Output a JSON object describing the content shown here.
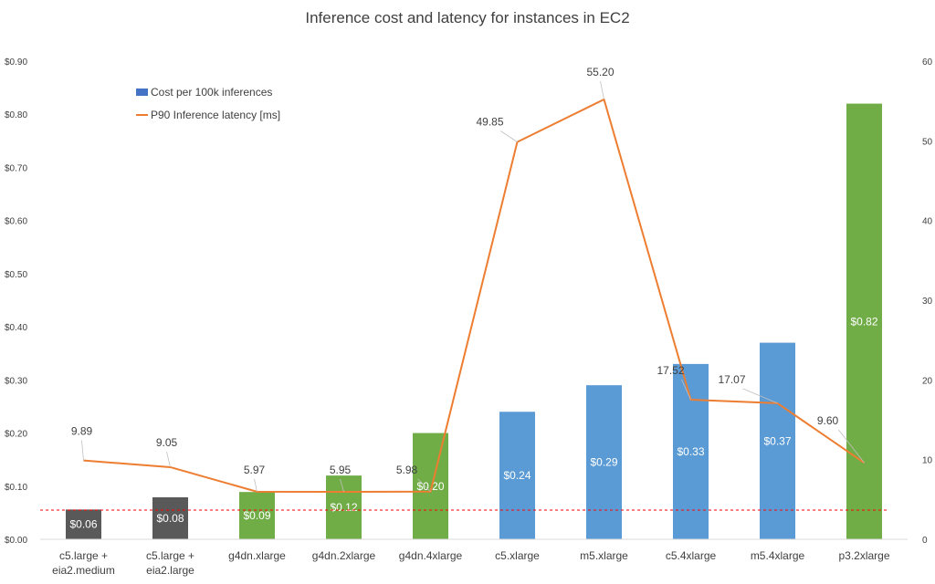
{
  "chart_data": {
    "type": "bar+line",
    "title": "Inference cost and latency for instances in EC2",
    "categories": [
      [
        "c5.large +",
        "eia2.medium"
      ],
      [
        "c5.large +",
        "eia2.large"
      ],
      [
        "g4dn.xlarge"
      ],
      [
        "g4dn.2xlarge"
      ],
      [
        "g4dn.4xlarge"
      ],
      [
        "c5.xlarge"
      ],
      [
        "m5.xlarge"
      ],
      [
        "c5.4xlarge"
      ],
      [
        "m5.4xlarge"
      ],
      [
        "p3.2xlarge"
      ]
    ],
    "series": [
      {
        "name": "Cost per 100k inferences",
        "type": "bar",
        "axis": "left",
        "values": [
          0.056,
          0.079,
          0.089,
          0.12,
          0.2,
          0.24,
          0.29,
          0.33,
          0.37,
          0.82
        ],
        "labels": [
          "$0.06",
          "$0.08",
          "$0.09",
          "$0.12",
          "$0.20",
          "$0.24",
          "$0.29",
          "$0.33",
          "$0.37",
          "$0.82"
        ],
        "colors": [
          "#595959",
          "#595959",
          "#70AD47",
          "#70AD47",
          "#70AD47",
          "#5B9BD5",
          "#5B9BD5",
          "#5B9BD5",
          "#5B9BD5",
          "#70AD47"
        ]
      },
      {
        "name": "P90 Inference latency [ms]",
        "type": "line",
        "axis": "right",
        "color": "#ED7D31",
        "values": [
          9.89,
          9.05,
          5.97,
          5.95,
          5.98,
          49.85,
          55.2,
          17.52,
          17.07,
          9.6
        ],
        "labels": [
          "9.89",
          "9.05",
          "5.97",
          "5.95",
          "5.98",
          "49.85",
          "55.20",
          "17.52",
          "17.07",
          "9.60"
        ]
      }
    ],
    "y_left": {
      "range": [
        0,
        0.9
      ],
      "ticks": [
        "$0.00",
        "$0.10",
        "$0.20",
        "$0.30",
        "$0.40",
        "$0.50",
        "$0.60",
        "$0.70",
        "$0.80",
        "$0.90"
      ]
    },
    "y_right": {
      "range": [
        0,
        60
      ],
      "ticks": [
        "0",
        "10",
        "20",
        "30",
        "40",
        "50",
        "60"
      ]
    },
    "reference_line": {
      "value": 0.055,
      "color": "#FF0000",
      "style": "dashed"
    },
    "legend": {
      "placement": "top-left",
      "bar_color": "#4472C4",
      "line_color": "#ED7D31"
    },
    "grid": false
  }
}
